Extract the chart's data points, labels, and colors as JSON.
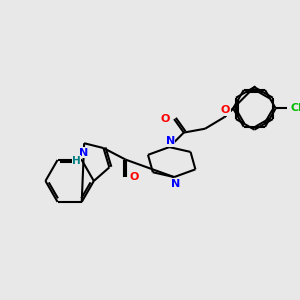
{
  "background_color": "#e8e8e8",
  "bond_color": "#000000",
  "atom_colors": {
    "N": "#0000ff",
    "O": "#ff0000",
    "Cl": "#00bb00",
    "H": "#008080",
    "C": "#000000"
  },
  "figsize": [
    3.0,
    3.0
  ],
  "dpi": 100
}
